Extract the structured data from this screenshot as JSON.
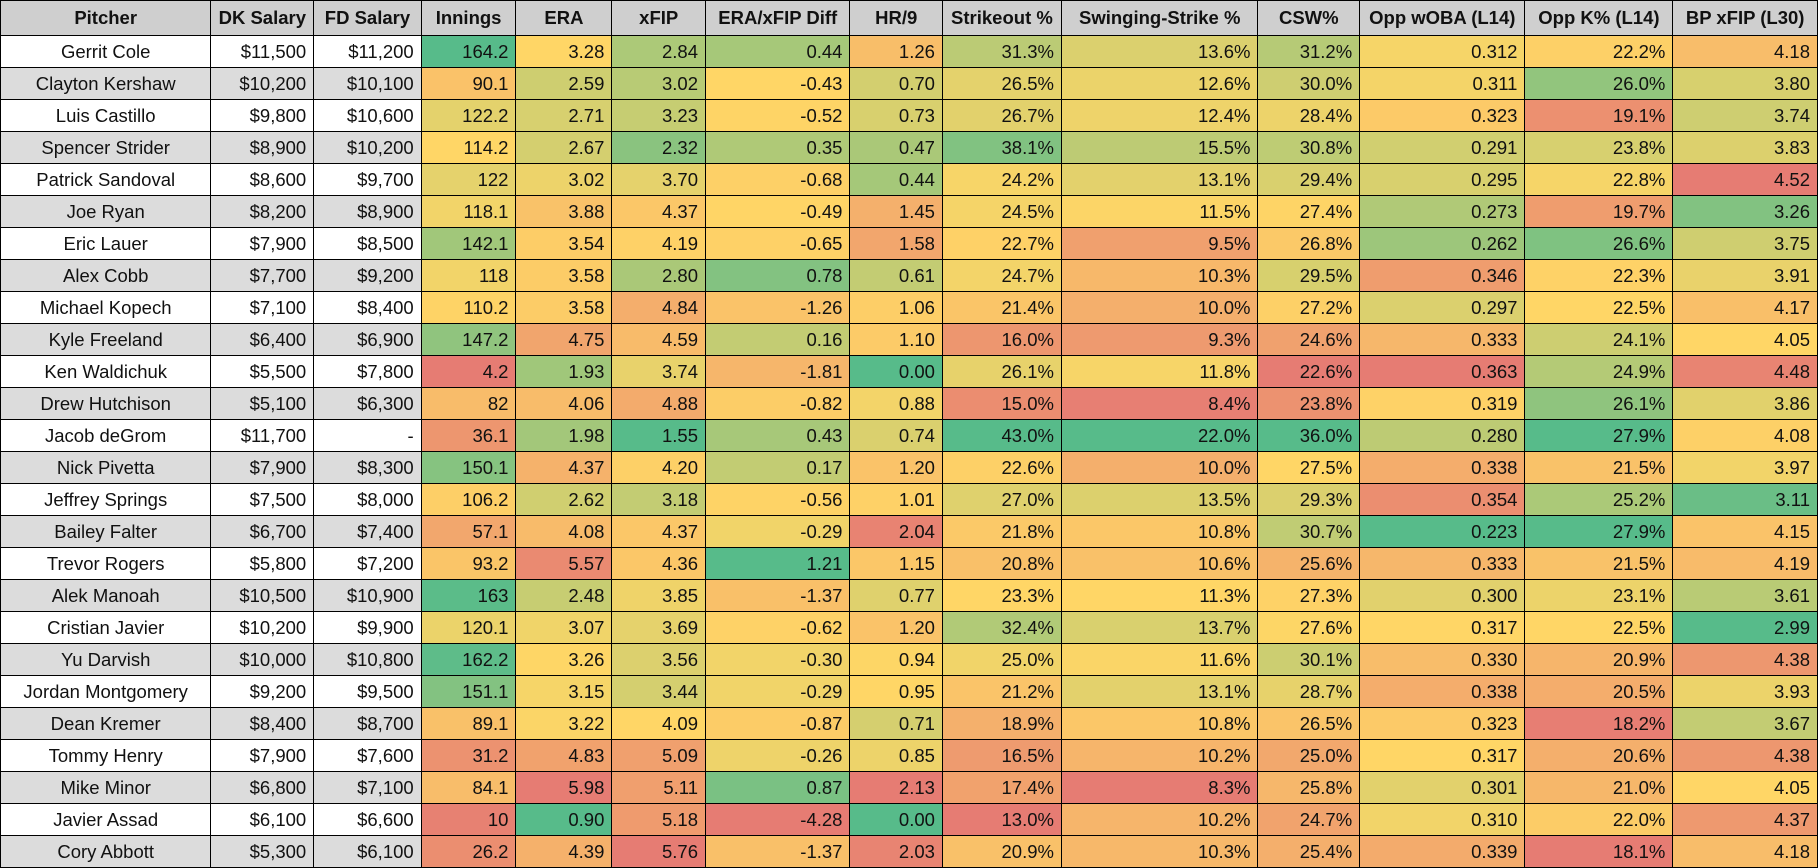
{
  "sheet": {
    "columns": [
      "Pitcher",
      "DK Salary",
      "FD Salary",
      "Innings",
      "ERA",
      "xFIP",
      "ERA/xFIP Diff",
      "HR/9",
      "Strikeout %",
      "Swinging-Strike %",
      "CSW%",
      "Opp wOBA (L14)",
      "Opp K% (L14)",
      "BP xFIP (L30)"
    ],
    "rows": [
      [
        "Gerrit Cole",
        "$11,500",
        "$11,200",
        "164.2",
        "3.28",
        "2.84",
        "0.44",
        "1.26",
        "31.3%",
        "13.6%",
        "31.2%",
        "0.312",
        "22.2%",
        "4.18"
      ],
      [
        "Clayton Kershaw",
        "$10,200",
        "$10,100",
        "90.1",
        "2.59",
        "3.02",
        "-0.43",
        "0.70",
        "26.5%",
        "12.6%",
        "30.0%",
        "0.311",
        "26.0%",
        "3.80"
      ],
      [
        "Luis Castillo",
        "$9,800",
        "$10,600",
        "122.2",
        "2.71",
        "3.23",
        "-0.52",
        "0.73",
        "26.7%",
        "12.4%",
        "28.4%",
        "0.323",
        "19.1%",
        "3.74"
      ],
      [
        "Spencer Strider",
        "$8,900",
        "$10,200",
        "114.2",
        "2.67",
        "2.32",
        "0.35",
        "0.47",
        "38.1%",
        "15.5%",
        "30.8%",
        "0.291",
        "23.8%",
        "3.83"
      ],
      [
        "Patrick Sandoval",
        "$8,600",
        "$9,700",
        "122",
        "3.02",
        "3.70",
        "-0.68",
        "0.44",
        "24.2%",
        "13.1%",
        "29.4%",
        "0.295",
        "22.8%",
        "4.52"
      ],
      [
        "Joe Ryan",
        "$8,200",
        "$8,900",
        "118.1",
        "3.88",
        "4.37",
        "-0.49",
        "1.45",
        "24.5%",
        "11.5%",
        "27.4%",
        "0.273",
        "19.7%",
        "3.26"
      ],
      [
        "Eric Lauer",
        "$7,900",
        "$8,500",
        "142.1",
        "3.54",
        "4.19",
        "-0.65",
        "1.58",
        "22.7%",
        "9.5%",
        "26.8%",
        "0.262",
        "26.6%",
        "3.75"
      ],
      [
        "Alex Cobb",
        "$7,700",
        "$9,200",
        "118",
        "3.58",
        "2.80",
        "0.78",
        "0.61",
        "24.7%",
        "10.3%",
        "29.5%",
        "0.346",
        "22.3%",
        "3.91"
      ],
      [
        "Michael Kopech",
        "$7,100",
        "$8,400",
        "110.2",
        "3.58",
        "4.84",
        "-1.26",
        "1.06",
        "21.4%",
        "10.0%",
        "27.2%",
        "0.297",
        "22.5%",
        "4.17"
      ],
      [
        "Kyle Freeland",
        "$6,400",
        "$6,900",
        "147.2",
        "4.75",
        "4.59",
        "0.16",
        "1.10",
        "16.0%",
        "9.3%",
        "24.6%",
        "0.333",
        "24.1%",
        "4.05"
      ],
      [
        "Ken Waldichuk",
        "$5,500",
        "$7,800",
        "4.2",
        "1.93",
        "3.74",
        "-1.81",
        "0.00",
        "26.1%",
        "11.8%",
        "22.6%",
        "0.363",
        "24.9%",
        "4.48"
      ],
      [
        "Drew Hutchison",
        "$5,100",
        "$6,300",
        "82",
        "4.06",
        "4.88",
        "-0.82",
        "0.88",
        "15.0%",
        "8.4%",
        "23.8%",
        "0.319",
        "26.1%",
        "3.86"
      ],
      [
        "Jacob deGrom",
        "$11,700",
        "-",
        "36.1",
        "1.98",
        "1.55",
        "0.43",
        "0.74",
        "43.0%",
        "22.0%",
        "36.0%",
        "0.280",
        "27.9%",
        "4.08"
      ],
      [
        "Nick Pivetta",
        "$7,900",
        "$8,300",
        "150.1",
        "4.37",
        "4.20",
        "0.17",
        "1.20",
        "22.6%",
        "10.0%",
        "27.5%",
        "0.338",
        "21.5%",
        "3.97"
      ],
      [
        "Jeffrey Springs",
        "$7,500",
        "$8,000",
        "106.2",
        "2.62",
        "3.18",
        "-0.56",
        "1.01",
        "27.0%",
        "13.5%",
        "29.3%",
        "0.354",
        "25.2%",
        "3.11"
      ],
      [
        "Bailey Falter",
        "$6,700",
        "$7,400",
        "57.1",
        "4.08",
        "4.37",
        "-0.29",
        "2.04",
        "21.8%",
        "10.8%",
        "30.7%",
        "0.223",
        "27.9%",
        "4.15"
      ],
      [
        "Trevor Rogers",
        "$5,800",
        "$7,200",
        "93.2",
        "5.57",
        "4.36",
        "1.21",
        "1.15",
        "20.8%",
        "10.6%",
        "25.6%",
        "0.333",
        "21.5%",
        "4.19"
      ],
      [
        "Alek Manoah",
        "$10,500",
        "$10,900",
        "163",
        "2.48",
        "3.85",
        "-1.37",
        "0.77",
        "23.3%",
        "11.3%",
        "27.3%",
        "0.300",
        "23.1%",
        "3.61"
      ],
      [
        "Cristian Javier",
        "$10,200",
        "$9,900",
        "120.1",
        "3.07",
        "3.69",
        "-0.62",
        "1.20",
        "32.4%",
        "13.7%",
        "27.6%",
        "0.317",
        "22.5%",
        "2.99"
      ],
      [
        "Yu Darvish",
        "$10,000",
        "$10,800",
        "162.2",
        "3.26",
        "3.56",
        "-0.30",
        "0.94",
        "25.0%",
        "11.6%",
        "30.1%",
        "0.330",
        "20.9%",
        "4.38"
      ],
      [
        "Jordan Montgomery",
        "$9,200",
        "$9,500",
        "151.1",
        "3.15",
        "3.44",
        "-0.29",
        "0.95",
        "21.2%",
        "13.1%",
        "28.7%",
        "0.338",
        "20.5%",
        "3.93"
      ],
      [
        "Dean Kremer",
        "$8,400",
        "$8,700",
        "89.1",
        "3.22",
        "4.09",
        "-0.87",
        "0.71",
        "18.9%",
        "10.8%",
        "26.5%",
        "0.323",
        "18.2%",
        "3.67"
      ],
      [
        "Tommy Henry",
        "$7,900",
        "$7,600",
        "31.2",
        "4.83",
        "5.09",
        "-0.26",
        "0.85",
        "16.5%",
        "10.2%",
        "25.0%",
        "0.317",
        "20.6%",
        "4.38"
      ],
      [
        "Mike Minor",
        "$6,800",
        "$7,100",
        "84.1",
        "5.98",
        "5.11",
        "0.87",
        "2.13",
        "17.4%",
        "8.3%",
        "25.8%",
        "0.301",
        "21.0%",
        "4.05"
      ],
      [
        "Javier Assad",
        "$6,100",
        "$6,600",
        "10",
        "0.90",
        "5.18",
        "-4.28",
        "0.00",
        "13.0%",
        "10.2%",
        "24.7%",
        "0.310",
        "22.0%",
        "4.37"
      ],
      [
        "Cory Abbott",
        "$5,300",
        "$6,100",
        "26.2",
        "4.39",
        "5.76",
        "-1.37",
        "2.03",
        "20.9%",
        "10.3%",
        "25.4%",
        "0.339",
        "18.1%",
        "4.18"
      ]
    ],
    "colors": {
      "green": "#57bb8a",
      "yellow": "#ffd666",
      "red": "#e67c73",
      "header_bg": "#cfcfcf",
      "alt_row_bg": "#dcdcdc"
    }
  }
}
